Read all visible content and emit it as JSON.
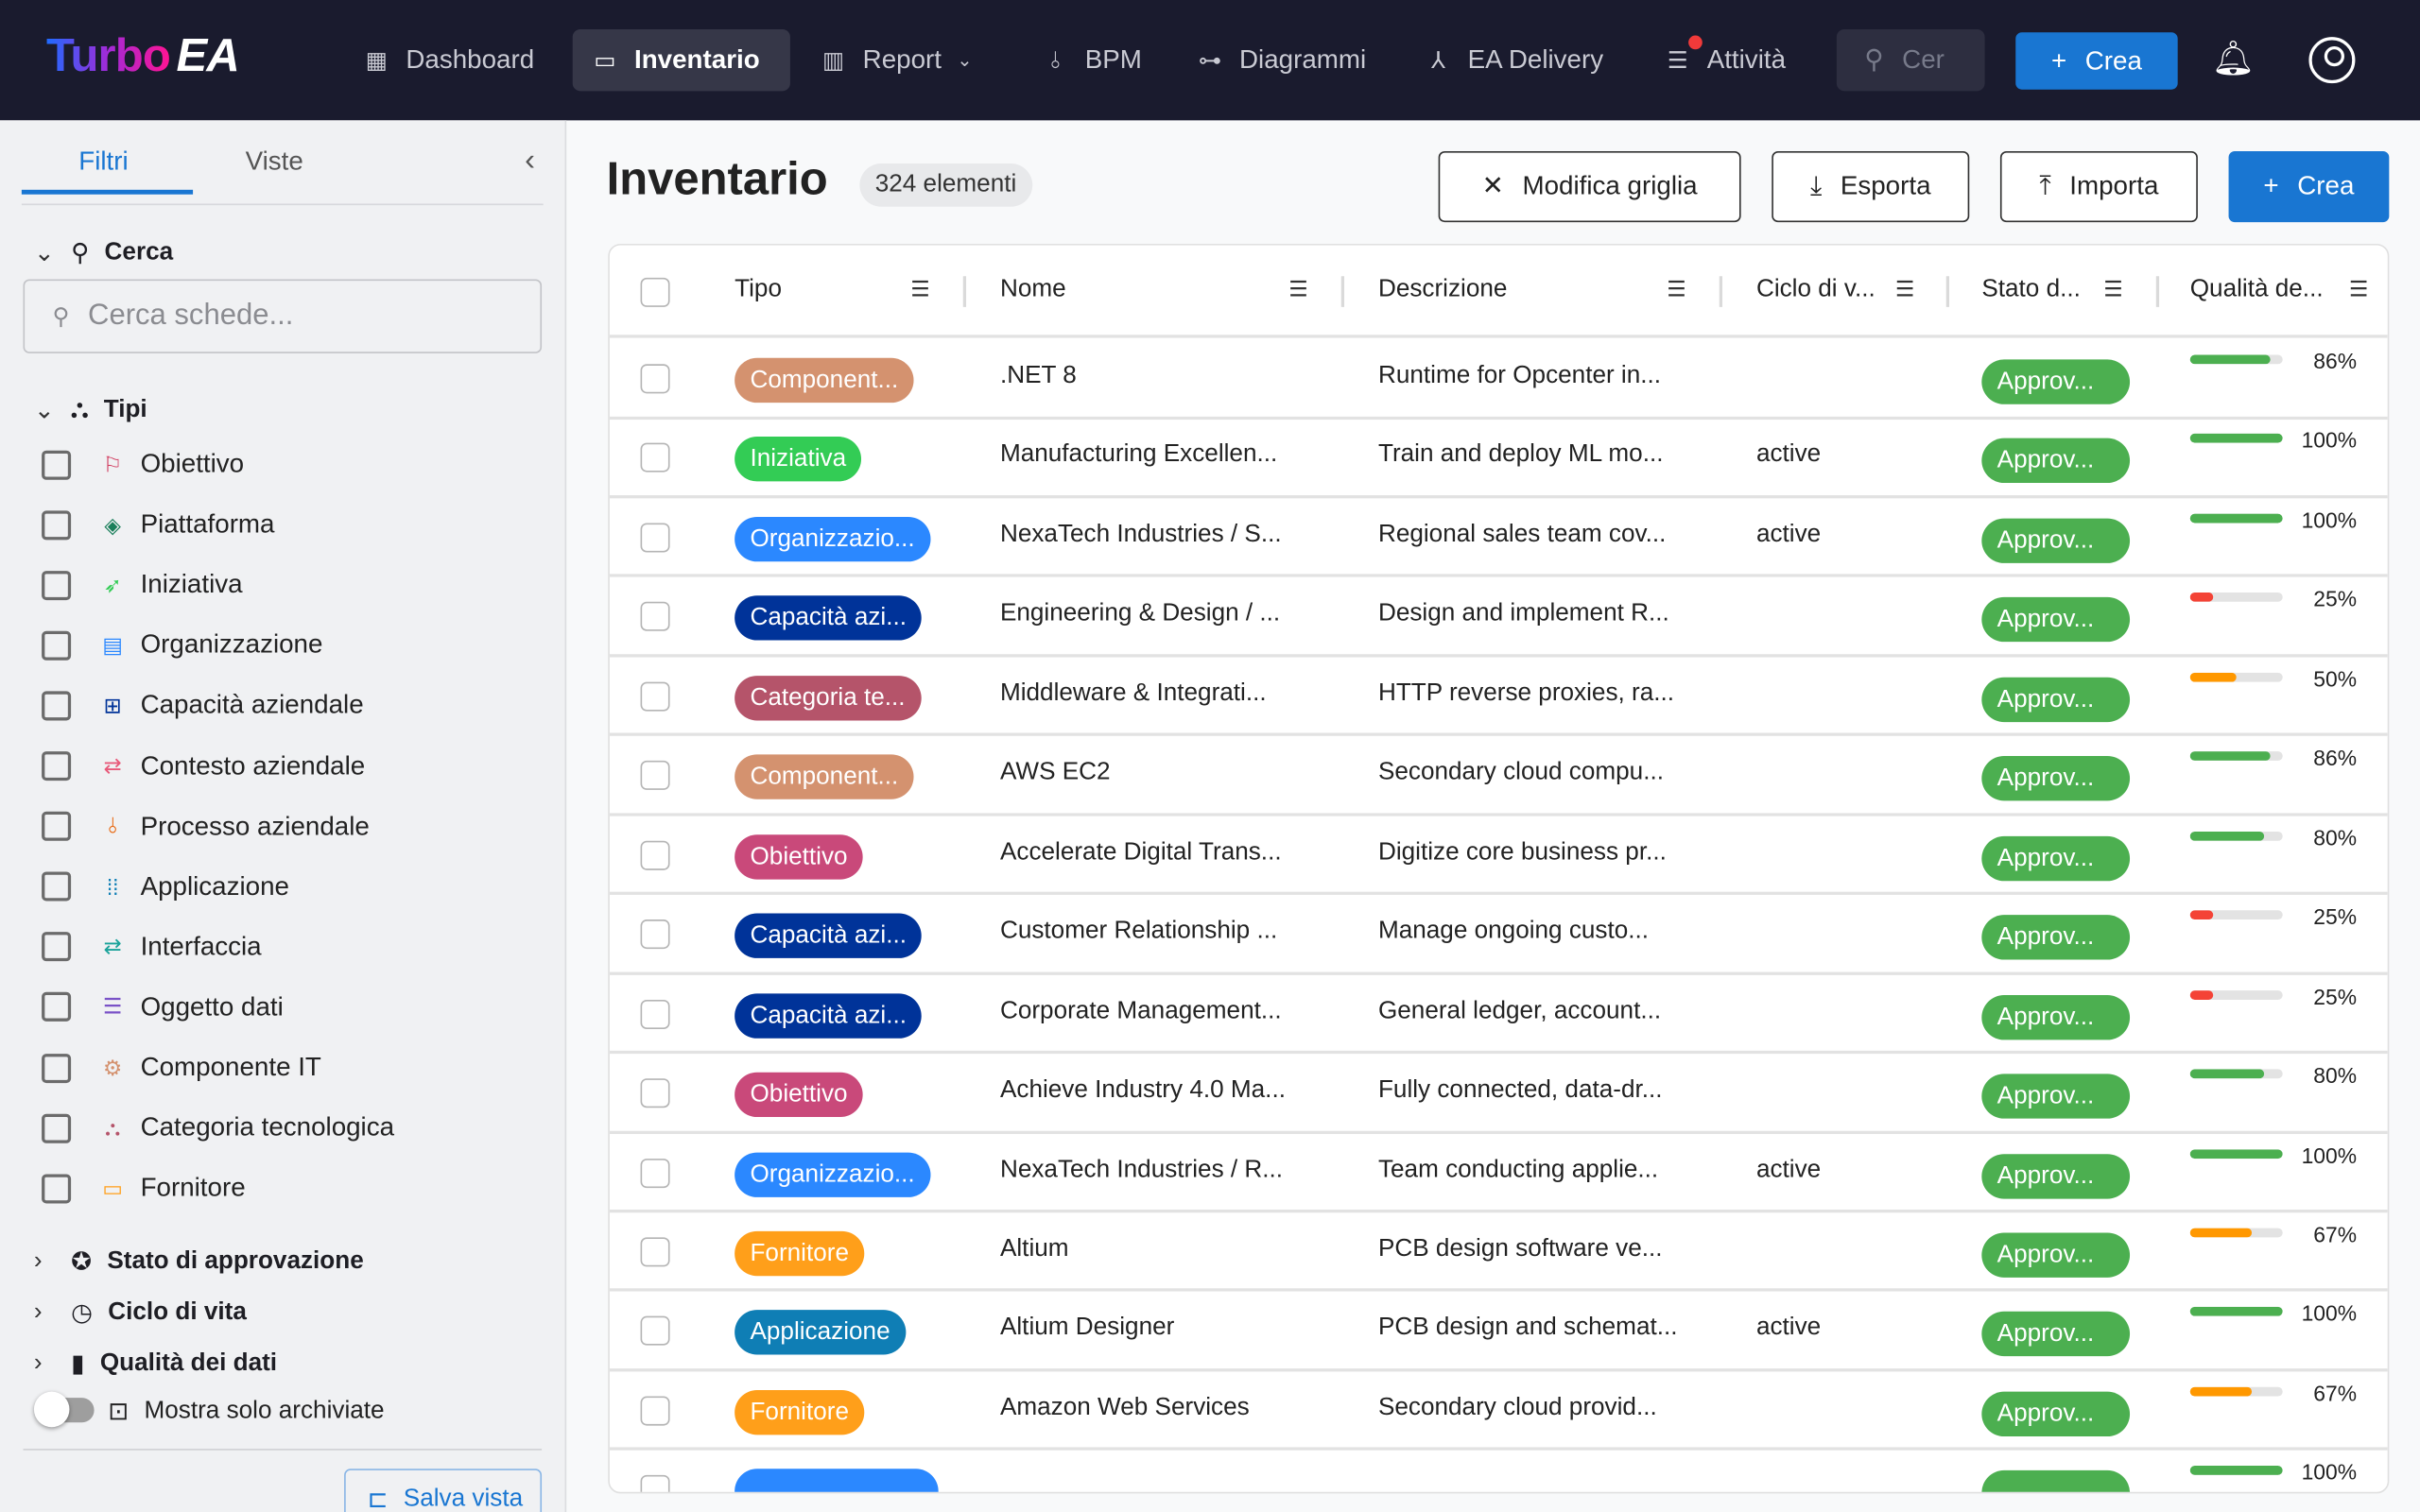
{
  "nav": {
    "logo": "TurboEA",
    "items": [
      {
        "label": "Dashboard",
        "icon": "dashboard-icon"
      },
      {
        "label": "Inventario",
        "icon": "inventory-icon",
        "active": true
      },
      {
        "label": "Report",
        "icon": "report-icon"
      },
      {
        "label": "BPM",
        "icon": "bpm-icon"
      },
      {
        "label": "Diagrammi",
        "icon": "diagram-icon"
      },
      {
        "label": "EA Delivery",
        "icon": "delivery-icon"
      },
      {
        "label": "Attività",
        "icon": "tasks-icon"
      }
    ],
    "search_placeholder": "Cer",
    "create": "Crea"
  },
  "sidebar": {
    "tabs": [
      "Filtri",
      "Viste"
    ],
    "search_section": "Cerca",
    "search_placeholder": "Cerca schede...",
    "types_section": "Tipi",
    "types": [
      {
        "label": "Obiettivo",
        "icon": "flag-icon",
        "color": "#d0355a"
      },
      {
        "label": "Piattaforma",
        "icon": "layers-icon",
        "color": "#1a7f5a"
      },
      {
        "label": "Iniziativa",
        "icon": "rocket-icon",
        "color": "#33cc55"
      },
      {
        "label": "Organizzazione",
        "icon": "building-icon",
        "color": "#2b88ff"
      },
      {
        "label": "Capacità aziendale",
        "icon": "hierarchy-icon",
        "color": "#003399"
      },
      {
        "label": "Contesto aziendale",
        "icon": "swap-icon",
        "color": "#e85a7a"
      },
      {
        "label": "Processo aziendale",
        "icon": "process-icon",
        "color": "#e8650a"
      },
      {
        "label": "Applicazione",
        "icon": "apps-icon",
        "color": "#0f7eb5"
      },
      {
        "label": "Interfaccia",
        "icon": "arrows-icon",
        "color": "#1aa39a"
      },
      {
        "label": "Oggetto dati",
        "icon": "database-icon",
        "color": "#7a52c7"
      },
      {
        "label": "Componente IT",
        "icon": "chip-icon",
        "color": "#d4926f"
      },
      {
        "label": "Categoria tecnologica",
        "icon": "category-icon",
        "color": "#b5546a"
      },
      {
        "label": "Fornitore",
        "icon": "store-icon",
        "color": "#ff9f1a"
      }
    ],
    "sections": [
      "Stato di approvazione",
      "Ciclo di vita",
      "Qualità dei dati"
    ],
    "archived_toggle": "Mostra solo archiviate",
    "save_view": "Salva vista"
  },
  "main": {
    "title": "Inventario",
    "count": "324 elementi",
    "buttons": {
      "edit_grid": "Modifica griglia",
      "export": "Esporta",
      "import": "Importa",
      "create": "Crea"
    },
    "columns": [
      "Tipo",
      "Nome",
      "Descrizione",
      "Ciclo di v...",
      "Stato d...",
      "Qualità de..."
    ],
    "rows": [
      {
        "type": "Component...",
        "color": "#d4926f",
        "name": ".NET 8",
        "desc": "Runtime for Opcenter in...",
        "life": "",
        "status": "Approv...",
        "q": 86
      },
      {
        "type": "Iniziativa",
        "color": "#33cc55",
        "name": "Manufacturing Excellen...",
        "desc": "Train and deploy ML mo...",
        "life": "active",
        "status": "Approv...",
        "q": 100
      },
      {
        "type": "Organizzazio...",
        "color": "#2b88ff",
        "name": "NexaTech Industries / S...",
        "desc": "Regional sales team cov...",
        "life": "active",
        "status": "Approv...",
        "q": 100
      },
      {
        "type": "Capacità azi...",
        "color": "#003399",
        "name": "Engineering & Design / ...",
        "desc": "Design and implement R...",
        "life": "",
        "status": "Approv...",
        "q": 25
      },
      {
        "type": "Categoria te...",
        "color": "#b5546a",
        "name": "Middleware & Integrati...",
        "desc": "HTTP reverse proxies, ra...",
        "life": "",
        "status": "Approv...",
        "q": 50
      },
      {
        "type": "Component...",
        "color": "#d4926f",
        "name": "AWS EC2",
        "desc": "Secondary cloud compu...",
        "life": "",
        "status": "Approv...",
        "q": 86
      },
      {
        "type": "Obiettivo",
        "color": "#c9497a",
        "name": "Accelerate Digital Trans...",
        "desc": "Digitize core business pr...",
        "life": "",
        "status": "Approv...",
        "q": 80
      },
      {
        "type": "Capacità azi...",
        "color": "#003399",
        "name": "Customer Relationship ...",
        "desc": "Manage ongoing custo...",
        "life": "",
        "status": "Approv...",
        "q": 25
      },
      {
        "type": "Capacità azi...",
        "color": "#003399",
        "name": "Corporate Management...",
        "desc": "General ledger, account...",
        "life": "",
        "status": "Approv...",
        "q": 25
      },
      {
        "type": "Obiettivo",
        "color": "#c9497a",
        "name": "Achieve Industry 4.0 Ma...",
        "desc": "Fully connected, data-dr...",
        "life": "",
        "status": "Approv...",
        "q": 80
      },
      {
        "type": "Organizzazio...",
        "color": "#2b88ff",
        "name": "NexaTech Industries / R...",
        "desc": "Team conducting applie...",
        "life": "active",
        "status": "Approv...",
        "q": 100
      },
      {
        "type": "Fornitore",
        "color": "#ff9f1a",
        "name": "Altium",
        "desc": "PCB design software ve...",
        "life": "",
        "status": "Approv...",
        "q": 67
      },
      {
        "type": "Applicazione",
        "color": "#0f7eb5",
        "name": "Altium Designer",
        "desc": "PCB design and schemat...",
        "life": "active",
        "status": "Approv...",
        "q": 100
      },
      {
        "type": "Fornitore",
        "color": "#ff9f1a",
        "name": "Amazon Web Services",
        "desc": "Secondary cloud provid...",
        "life": "",
        "status": "Approv...",
        "q": 67
      },
      {
        "type": "",
        "color": "#2b88ff",
        "name": "",
        "desc": "",
        "life": "",
        "status": "",
        "q": 100
      }
    ]
  },
  "colors": {
    "nav_bg": "#1a1b2e",
    "accent": "#1976d2",
    "approved": "#4caf50",
    "q_high": "#4caf50",
    "q_mid": "#ff9800",
    "q_low": "#f44336"
  }
}
